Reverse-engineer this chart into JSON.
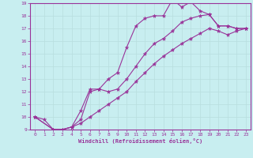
{
  "title": "",
  "xlabel": "Windchill (Refroidissement éolien,°C)",
  "ylabel": "",
  "bg_color": "#c8eef0",
  "line_color": "#993399",
  "grid_color": "#b8dede",
  "xlim": [
    -0.5,
    23.5
  ],
  "ylim": [
    9,
    19
  ],
  "xticks": [
    0,
    1,
    2,
    3,
    4,
    5,
    6,
    7,
    8,
    9,
    10,
    11,
    12,
    13,
    14,
    15,
    16,
    17,
    18,
    19,
    20,
    21,
    22,
    23
  ],
  "yticks": [
    9,
    10,
    11,
    12,
    13,
    14,
    15,
    16,
    17,
    18,
    19
  ],
  "series": [
    {
      "x": [
        0,
        1,
        2,
        3,
        4,
        5,
        6,
        7,
        8,
        9,
        10,
        11,
        12,
        13,
        14,
        15,
        16,
        17,
        18,
        19,
        20,
        21,
        22,
        23
      ],
      "y": [
        10,
        9.8,
        9,
        9,
        9.2,
        10.5,
        12.2,
        12.2,
        13.0,
        13.5,
        15.5,
        17.2,
        17.8,
        18.0,
        18.0,
        19.3,
        18.7,
        19.1,
        18.4,
        18.1,
        17.2,
        17.2,
        17.0,
        17.0
      ]
    },
    {
      "x": [
        0,
        2,
        3,
        4,
        5,
        6,
        7,
        8,
        9,
        10,
        11,
        12,
        13,
        14,
        15,
        16,
        17,
        18,
        19,
        20,
        21,
        22,
        23
      ],
      "y": [
        10,
        9,
        9,
        9.2,
        9.8,
        12.0,
        12.2,
        12.0,
        12.2,
        13.0,
        14.0,
        15.0,
        15.8,
        16.2,
        16.8,
        17.5,
        17.8,
        18.0,
        18.1,
        17.2,
        17.2,
        17.0,
        17.0
      ]
    },
    {
      "x": [
        0,
        2,
        3,
        4,
        5,
        6,
        7,
        8,
        9,
        10,
        11,
        12,
        13,
        14,
        15,
        16,
        17,
        18,
        19,
        20,
        21,
        22,
        23
      ],
      "y": [
        10,
        9,
        9,
        9.2,
        9.5,
        10.0,
        10.5,
        11.0,
        11.5,
        12.0,
        12.8,
        13.5,
        14.2,
        14.8,
        15.3,
        15.8,
        16.2,
        16.6,
        17.0,
        16.8,
        16.5,
        16.8,
        17.0
      ]
    }
  ]
}
